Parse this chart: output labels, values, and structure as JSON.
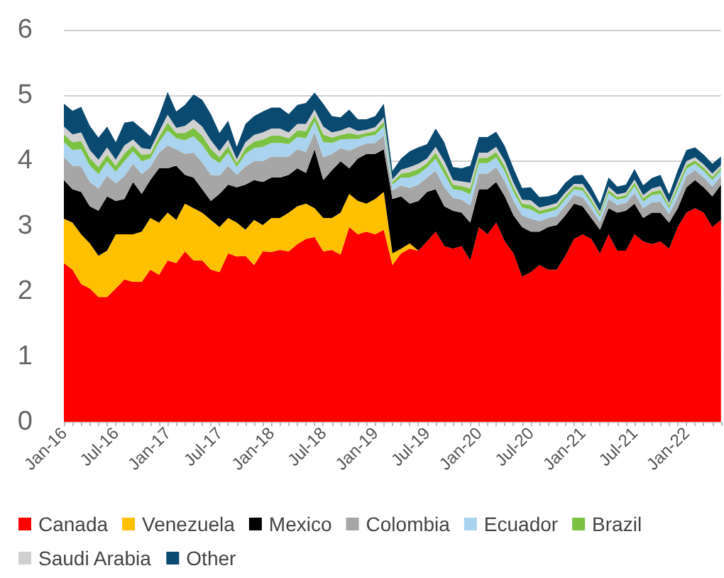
{
  "chart_data": {
    "type": "area",
    "stacked": true,
    "legend": "bottom",
    "grid": "y",
    "ylim": [
      0,
      6
    ],
    "yticks": [
      0,
      1,
      2,
      3,
      4,
      5,
      6
    ],
    "categories": [
      "Jan-16",
      null,
      null,
      null,
      null,
      null,
      "Jul-16",
      null,
      null,
      null,
      null,
      null,
      "Jan-17",
      null,
      null,
      null,
      null,
      null,
      "Jul-17",
      null,
      null,
      null,
      null,
      null,
      "Jan-18",
      null,
      null,
      null,
      null,
      null,
      "Jul-18",
      null,
      null,
      null,
      null,
      null,
      "Jan-19",
      null,
      null,
      null,
      null,
      null,
      "Jul-19",
      null,
      null,
      null,
      null,
      null,
      "Jan-20",
      null,
      null,
      null,
      null,
      null,
      "Jul-20",
      null,
      null,
      null,
      null,
      null,
      "Jan-21",
      null,
      null,
      null,
      null,
      null,
      "Jul-21",
      null,
      null,
      null,
      null,
      null,
      "Jan-22",
      null,
      null,
      null,
      null
    ],
    "series": [
      {
        "name": "Canada",
        "color": "#ff0000",
        "values": [
          2.43,
          2.33,
          2.11,
          2.04,
          1.91,
          1.91,
          2.04,
          2.18,
          2.14,
          2.14,
          2.33,
          2.25,
          2.47,
          2.43,
          2.61,
          2.47,
          2.47,
          2.33,
          2.29,
          2.58,
          2.53,
          2.54,
          2.4,
          2.61,
          2.6,
          2.63,
          2.61,
          2.72,
          2.8,
          2.83,
          2.61,
          2.63,
          2.56,
          2.98,
          2.87,
          2.91,
          2.87,
          2.94,
          2.4,
          2.58,
          2.65,
          2.62,
          2.76,
          2.91,
          2.69,
          2.65,
          2.69,
          2.47,
          2.98,
          2.87,
          3.05,
          2.76,
          2.58,
          2.22,
          2.29,
          2.4,
          2.33,
          2.33,
          2.54,
          2.8,
          2.87,
          2.8,
          2.58,
          2.87,
          2.62,
          2.62,
          2.87,
          2.76,
          2.72,
          2.76,
          2.65,
          2.98,
          3.2,
          3.27,
          3.2,
          2.98,
          3.09
        ]
      },
      {
        "name": "Venezuela",
        "color": "#ffc000",
        "values": [
          0.68,
          0.72,
          0.76,
          0.69,
          0.63,
          0.71,
          0.83,
          0.69,
          0.73,
          0.77,
          0.79,
          0.8,
          0.73,
          0.66,
          0.73,
          0.8,
          0.73,
          0.76,
          0.69,
          0.54,
          0.52,
          0.4,
          0.69,
          0.4,
          0.52,
          0.49,
          0.59,
          0.58,
          0.54,
          0.44,
          0.51,
          0.49,
          0.64,
          0.51,
          0.51,
          0.43,
          0.54,
          0.58,
          0.18,
          0.07,
          0.08,
          0,
          0,
          0,
          0,
          0,
          0,
          0,
          0,
          0,
          0,
          0,
          0,
          0,
          0,
          0,
          0,
          0,
          0,
          0,
          0,
          0,
          0,
          0,
          0,
          0,
          0,
          0,
          0,
          0,
          0,
          0,
          0,
          0,
          0,
          0,
          0
        ]
      },
      {
        "name": "Mexico",
        "color": "#000000",
        "values": [
          0.59,
          0.51,
          0.65,
          0.57,
          0.69,
          0.83,
          0.51,
          0.54,
          0.8,
          0.58,
          0.58,
          0.83,
          0.68,
          0.83,
          0.44,
          0.47,
          0.36,
          0.29,
          0.51,
          0.51,
          0.54,
          0.69,
          0.61,
          0.66,
          0.62,
          0.62,
          0.58,
          0.58,
          0.47,
          0.9,
          0.58,
          0.73,
          0.79,
          0.39,
          0.65,
          0.76,
          0.69,
          0.65,
          0.83,
          0.8,
          0.61,
          0.76,
          0.76,
          0.65,
          0.61,
          0.58,
          0.51,
          0.58,
          0.58,
          0.69,
          0.62,
          0.69,
          0.58,
          0.76,
          0.62,
          0.51,
          0.65,
          0.68,
          0.62,
          0.54,
          0.43,
          0.32,
          0.36,
          0.4,
          0.58,
          0.61,
          0.47,
          0.36,
          0.48,
          0.44,
          0.4,
          0.29,
          0.39,
          0.43,
          0.39,
          0.47,
          0.54
        ]
      },
      {
        "name": "Colombia",
        "color": "#a6a6a6",
        "values": [
          0.35,
          0.36,
          0.39,
          0.37,
          0.34,
          0.32,
          0.27,
          0.35,
          0.28,
          0.3,
          0.2,
          0.24,
          0.35,
          0.25,
          0.32,
          0.38,
          0.41,
          0.4,
          0.28,
          0.29,
          0.19,
          0.28,
          0.29,
          0.32,
          0.32,
          0.32,
          0.28,
          0.29,
          0.32,
          0.26,
          0.35,
          0.25,
          0.2,
          0.27,
          0.18,
          0.16,
          0.17,
          0.21,
          0.13,
          0.17,
          0.24,
          0.25,
          0.22,
          0.28,
          0.29,
          0.2,
          0.2,
          0.26,
          0.24,
          0.24,
          0.23,
          0.23,
          0.22,
          0.18,
          0.2,
          0.16,
          0.14,
          0.14,
          0.15,
          0.13,
          0.14,
          0.14,
          0.12,
          0.14,
          0.12,
          0.12,
          0.16,
          0.15,
          0.16,
          0.17,
          0.13,
          0.17,
          0.17,
          0.15,
          0.15,
          0.15,
          0.13
        ]
      },
      {
        "name": "Ecuador",
        "color": "#a9d3ee",
        "values": [
          0.23,
          0.24,
          0.26,
          0.25,
          0.22,
          0.21,
          0.18,
          0.23,
          0.19,
          0.2,
          0.13,
          0.16,
          0.23,
          0.17,
          0.21,
          0.25,
          0.27,
          0.27,
          0.19,
          0.2,
          0.12,
          0.19,
          0.2,
          0.22,
          0.21,
          0.21,
          0.19,
          0.19,
          0.21,
          0.17,
          0.23,
          0.17,
          0.13,
          0.18,
          0.12,
          0.11,
          0.12,
          0.14,
          0.09,
          0.12,
          0.16,
          0.16,
          0.15,
          0.19,
          0.2,
          0.13,
          0.14,
          0.17,
          0.16,
          0.16,
          0.15,
          0.15,
          0.14,
          0.12,
          0.14,
          0.11,
          0.09,
          0.1,
          0.1,
          0.09,
          0.1,
          0.09,
          0.08,
          0.09,
          0.08,
          0.08,
          0.11,
          0.1,
          0.11,
          0.12,
          0.09,
          0.12,
          0.11,
          0.1,
          0.1,
          0.1,
          0.09
        ]
      },
      {
        "name": "Brazil",
        "color": "#7cc242",
        "values": [
          0.12,
          0.12,
          0.13,
          0.12,
          0.11,
          0.11,
          0.09,
          0.12,
          0.09,
          0.1,
          0.07,
          0.08,
          0.12,
          0.08,
          0.11,
          0.13,
          0.14,
          0.13,
          0.09,
          0.1,
          0.06,
          0.09,
          0.1,
          0.11,
          0.11,
          0.11,
          0.09,
          0.1,
          0.11,
          0.09,
          0.12,
          0.08,
          0.07,
          0.09,
          0.06,
          0.05,
          0.06,
          0.07,
          0.04,
          0.06,
          0.08,
          0.08,
          0.07,
          0.09,
          0.1,
          0.07,
          0.07,
          0.09,
          0.08,
          0.08,
          0.08,
          0.08,
          0.07,
          0.06,
          0.07,
          0.05,
          0.05,
          0.05,
          0.05,
          0.04,
          0.05,
          0.05,
          0.04,
          0.05,
          0.04,
          0.04,
          0.05,
          0.05,
          0.05,
          0.06,
          0.04,
          0.06,
          0.06,
          0.05,
          0.05,
          0.05,
          0.04
        ]
      },
      {
        "name": "Saudi Arabia",
        "color": "#d0d0d0",
        "values": [
          0.12,
          0.12,
          0.13,
          0.12,
          0.11,
          0.11,
          0.09,
          0.12,
          0.09,
          0.1,
          0.07,
          0.08,
          0.12,
          0.08,
          0.11,
          0.13,
          0.14,
          0.13,
          0.09,
          0.1,
          0.06,
          0.09,
          0.1,
          0.11,
          0.11,
          0.11,
          0.09,
          0.1,
          0.11,
          0.09,
          0.12,
          0.08,
          0.07,
          0.09,
          0.06,
          0.05,
          0.06,
          0.07,
          0.04,
          0.06,
          0.08,
          0.08,
          0.07,
          0.09,
          0.1,
          0.07,
          0.07,
          0.09,
          0.08,
          0.08,
          0.08,
          0.08,
          0.07,
          0.06,
          0.07,
          0.05,
          0.05,
          0.05,
          0.05,
          0.04,
          0.05,
          0.05,
          0.04,
          0.05,
          0.04,
          0.04,
          0.05,
          0.05,
          0.05,
          0.06,
          0.04,
          0.06,
          0.06,
          0.05,
          0.05,
          0.05,
          0.04
        ]
      },
      {
        "name": "Other",
        "color": "#0a4a70",
        "values": [
          0.35,
          0.36,
          0.39,
          0.37,
          0.34,
          0.32,
          0.27,
          0.35,
          0.28,
          0.3,
          0.2,
          0.24,
          0.35,
          0.25,
          0.32,
          0.38,
          0.41,
          0.4,
          0.28,
          0.29,
          0.19,
          0.28,
          0.29,
          0.32,
          0.32,
          0.32,
          0.28,
          0.29,
          0.32,
          0.26,
          0.35,
          0.25,
          0.2,
          0.27,
          0.18,
          0.16,
          0.17,
          0.21,
          0.13,
          0.17,
          0.24,
          0.25,
          0.22,
          0.28,
          0.29,
          0.2,
          0.2,
          0.26,
          0.24,
          0.24,
          0.23,
          0.23,
          0.22,
          0.18,
          0.2,
          0.16,
          0.14,
          0.14,
          0.15,
          0.13,
          0.14,
          0.14,
          0.12,
          0.14,
          0.12,
          0.12,
          0.16,
          0.15,
          0.16,
          0.17,
          0.13,
          0.17,
          0.17,
          0.15,
          0.15,
          0.15,
          0.13
        ]
      }
    ]
  }
}
